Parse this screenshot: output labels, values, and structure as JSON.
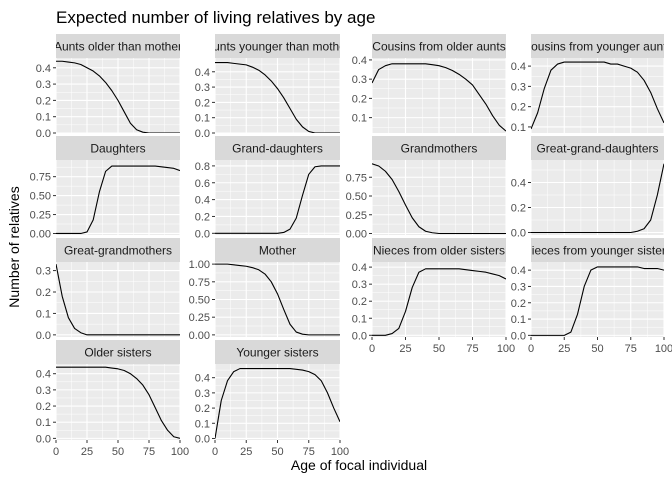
{
  "chart_data": {
    "type": "line",
    "title": "Expected number of living relatives by age",
    "xlabel": "Age of focal individual",
    "ylabel": "Number of relatives",
    "xlim": [
      0,
      100
    ],
    "x_ticks": [
      "0",
      "25",
      "50",
      "75",
      "100"
    ],
    "facet_layout": "4 columns, free y scales",
    "grid": true,
    "colors": {
      "panel_bg": "#ebebeb",
      "grid_major": "#ffffff",
      "strip_bg": "#d9d9d9",
      "line": "#000000"
    },
    "facets": [
      {
        "name": "Aunts older than mother",
        "ylim": [
          0,
          0.46
        ],
        "y_ticks": [
          0.0,
          0.1,
          0.2,
          0.3,
          0.4
        ],
        "x": [
          0,
          5,
          10,
          15,
          20,
          25,
          30,
          35,
          40,
          45,
          50,
          55,
          60,
          65,
          70,
          75,
          80,
          85,
          90,
          95,
          100
        ],
        "y": [
          0.44,
          0.44,
          0.435,
          0.43,
          0.42,
          0.4,
          0.38,
          0.35,
          0.31,
          0.26,
          0.2,
          0.13,
          0.06,
          0.02,
          0.005,
          0,
          0,
          0,
          0,
          0,
          0
        ]
      },
      {
        "name": "Aunts younger than mother",
        "ylim": [
          0,
          0.49
        ],
        "y_ticks": [
          0.0,
          0.1,
          0.2,
          0.3,
          0.4
        ],
        "x": [
          0,
          5,
          10,
          15,
          20,
          25,
          30,
          35,
          40,
          45,
          50,
          55,
          60,
          65,
          70,
          75,
          80,
          85,
          90,
          95,
          100
        ],
        "y": [
          0.46,
          0.46,
          0.46,
          0.455,
          0.45,
          0.445,
          0.43,
          0.41,
          0.38,
          0.34,
          0.29,
          0.23,
          0.16,
          0.09,
          0.04,
          0.01,
          0,
          0,
          0,
          0,
          0
        ]
      },
      {
        "name": "Cousins from older aunts",
        "ylim": [
          0.02,
          0.41
        ],
        "y_ticks": [
          0.1,
          0.2,
          0.3,
          0.4
        ],
        "x": [
          0,
          5,
          10,
          15,
          20,
          25,
          30,
          35,
          40,
          45,
          50,
          55,
          60,
          65,
          70,
          75,
          80,
          85,
          90,
          95,
          100
        ],
        "y": [
          0.28,
          0.35,
          0.37,
          0.38,
          0.38,
          0.38,
          0.38,
          0.38,
          0.38,
          0.375,
          0.37,
          0.36,
          0.345,
          0.325,
          0.3,
          0.27,
          0.22,
          0.17,
          0.11,
          0.06,
          0.03
        ]
      },
      {
        "name": "Cousins from younger aunts",
        "ylim": [
          0.07,
          0.44
        ],
        "y_ticks": [
          0.1,
          0.2,
          0.3,
          0.4
        ],
        "x": [
          0,
          5,
          10,
          15,
          20,
          25,
          30,
          35,
          40,
          45,
          50,
          55,
          60,
          65,
          70,
          75,
          80,
          85,
          90,
          95,
          100
        ],
        "y": [
          0.09,
          0.17,
          0.29,
          0.38,
          0.41,
          0.42,
          0.42,
          0.42,
          0.42,
          0.42,
          0.42,
          0.42,
          0.41,
          0.41,
          0.4,
          0.39,
          0.37,
          0.33,
          0.27,
          0.19,
          0.12
        ]
      },
      {
        "name": "Daughters",
        "ylim": [
          -0.02,
          0.97
        ],
        "y_ticks": [
          0.0,
          0.25,
          0.5,
          0.75
        ],
        "x": [
          0,
          5,
          10,
          15,
          20,
          25,
          30,
          35,
          40,
          45,
          50,
          55,
          60,
          65,
          70,
          75,
          80,
          85,
          90,
          95,
          100
        ],
        "y": [
          0,
          0,
          0,
          0,
          0,
          0.02,
          0.18,
          0.55,
          0.82,
          0.89,
          0.89,
          0.89,
          0.89,
          0.89,
          0.89,
          0.89,
          0.89,
          0.88,
          0.87,
          0.86,
          0.83
        ]
      },
      {
        "name": "Grand-daughters",
        "ylim": [
          -0.02,
          0.87
        ],
        "y_ticks": [
          0.0,
          0.2,
          0.4,
          0.6,
          0.8
        ],
        "x": [
          0,
          5,
          10,
          15,
          20,
          25,
          30,
          35,
          40,
          45,
          50,
          55,
          60,
          65,
          70,
          75,
          80,
          85,
          90,
          95,
          100
        ],
        "y": [
          0,
          0,
          0,
          0,
          0,
          0,
          0,
          0,
          0,
          0,
          0,
          0.01,
          0.05,
          0.18,
          0.45,
          0.7,
          0.79,
          0.8,
          0.8,
          0.8,
          0.8
        ]
      },
      {
        "name": "Grandmothers",
        "ylim": [
          -0.02,
          0.98
        ],
        "y_ticks": [
          0.0,
          0.25,
          0.5,
          0.75
        ],
        "x": [
          0,
          5,
          10,
          15,
          20,
          25,
          30,
          35,
          40,
          45,
          50,
          55,
          60,
          65,
          70,
          75,
          80,
          85,
          90,
          95,
          100
        ],
        "y": [
          0.93,
          0.9,
          0.83,
          0.72,
          0.56,
          0.38,
          0.21,
          0.09,
          0.03,
          0.01,
          0,
          0,
          0,
          0,
          0,
          0,
          0,
          0,
          0,
          0,
          0
        ]
      },
      {
        "name": "Great-grand-daughters",
        "ylim": [
          -0.02,
          0.58
        ],
        "y_ticks": [
          0.0,
          0.2,
          0.4
        ],
        "x": [
          0,
          5,
          10,
          15,
          20,
          25,
          30,
          35,
          40,
          45,
          50,
          55,
          60,
          65,
          70,
          75,
          80,
          85,
          90,
          95,
          100
        ],
        "y": [
          0,
          0,
          0,
          0,
          0,
          0,
          0,
          0,
          0,
          0,
          0,
          0,
          0,
          0,
          0,
          0,
          0.01,
          0.03,
          0.1,
          0.3,
          0.55
        ]
      },
      {
        "name": "Great-grandmothers",
        "ylim": [
          -0.01,
          0.34
        ],
        "y_ticks": [
          0.0,
          0.1,
          0.2,
          0.3
        ],
        "x": [
          0,
          5,
          10,
          15,
          20,
          25,
          30,
          35,
          40,
          45,
          50,
          55,
          60,
          65,
          70,
          75,
          80,
          85,
          90,
          95,
          100
        ],
        "y": [
          0.33,
          0.18,
          0.08,
          0.03,
          0.01,
          0,
          0,
          0,
          0,
          0,
          0,
          0,
          0,
          0,
          0,
          0,
          0,
          0,
          0,
          0,
          0
        ]
      },
      {
        "name": "Mother",
        "ylim": [
          -0.03,
          1.03
        ],
        "y_ticks": [
          0.0,
          0.25,
          0.5,
          0.75,
          1.0
        ],
        "x": [
          0,
          5,
          10,
          15,
          20,
          25,
          30,
          35,
          40,
          45,
          50,
          55,
          60,
          65,
          70,
          75,
          80,
          85,
          90,
          95,
          100
        ],
        "y": [
          1.0,
          1.0,
          1.0,
          0.99,
          0.98,
          0.97,
          0.95,
          0.92,
          0.86,
          0.75,
          0.58,
          0.36,
          0.15,
          0.04,
          0.01,
          0,
          0,
          0,
          0,
          0,
          0
        ]
      },
      {
        "name": "Nieces from older sisters",
        "ylim": [
          -0.01,
          0.43
        ],
        "y_ticks": [
          0.0,
          0.1,
          0.2,
          0.3,
          0.4
        ],
        "x": [
          0,
          5,
          10,
          15,
          20,
          25,
          30,
          35,
          40,
          45,
          50,
          55,
          60,
          65,
          70,
          75,
          80,
          85,
          90,
          95,
          100
        ],
        "y": [
          0,
          0,
          0,
          0.01,
          0.04,
          0.14,
          0.28,
          0.37,
          0.39,
          0.39,
          0.39,
          0.39,
          0.39,
          0.39,
          0.385,
          0.38,
          0.375,
          0.37,
          0.36,
          0.35,
          0.33
        ]
      },
      {
        "name": "Nieces from younger sisters",
        "ylim": [
          -0.01,
          0.45
        ],
        "y_ticks": [
          0.0,
          0.1,
          0.2,
          0.3,
          0.4
        ],
        "x": [
          0,
          5,
          10,
          15,
          20,
          25,
          30,
          35,
          40,
          45,
          50,
          55,
          60,
          65,
          70,
          75,
          80,
          85,
          90,
          95,
          100
        ],
        "y": [
          0,
          0,
          0,
          0,
          0,
          0,
          0.02,
          0.13,
          0.3,
          0.4,
          0.42,
          0.42,
          0.42,
          0.42,
          0.42,
          0.42,
          0.42,
          0.41,
          0.41,
          0.41,
          0.4
        ]
      },
      {
        "name": "Older sisters",
        "ylim": [
          -0.01,
          0.46
        ],
        "y_ticks": [
          0.0,
          0.1,
          0.2,
          0.3,
          0.4
        ],
        "x": [
          0,
          5,
          10,
          15,
          20,
          25,
          30,
          35,
          40,
          45,
          50,
          55,
          60,
          65,
          70,
          75,
          80,
          85,
          90,
          95,
          100
        ],
        "y": [
          0.44,
          0.44,
          0.44,
          0.44,
          0.44,
          0.44,
          0.44,
          0.44,
          0.44,
          0.435,
          0.43,
          0.42,
          0.4,
          0.37,
          0.33,
          0.27,
          0.19,
          0.11,
          0.05,
          0.01,
          0
        ]
      },
      {
        "name": "Younger sisters",
        "ylim": [
          -0.01,
          0.49
        ],
        "y_ticks": [
          0.0,
          0.1,
          0.2,
          0.3,
          0.4
        ],
        "x": [
          0,
          5,
          10,
          15,
          20,
          25,
          30,
          35,
          40,
          45,
          50,
          55,
          60,
          65,
          70,
          75,
          80,
          85,
          90,
          95,
          100
        ],
        "y": [
          0.0,
          0.25,
          0.38,
          0.44,
          0.46,
          0.46,
          0.46,
          0.46,
          0.46,
          0.46,
          0.46,
          0.46,
          0.46,
          0.455,
          0.45,
          0.44,
          0.42,
          0.38,
          0.3,
          0.2,
          0.11
        ]
      }
    ]
  }
}
